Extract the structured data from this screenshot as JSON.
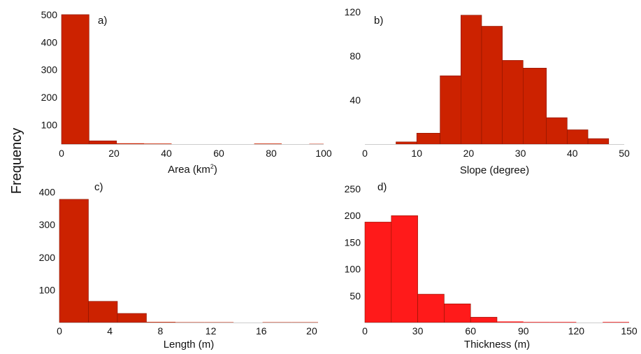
{
  "figure": {
    "ylabel": "Frequency"
  },
  "chart_data": [
    {
      "type": "bar",
      "panel_label": "a)",
      "xlabel": "Area (km",
      "xlabel_sup": "2",
      "xlabel_tail": ")",
      "ylabel": "Frequency",
      "xlim": [
        0,
        100
      ],
      "ylim": [
        30,
        510
      ],
      "xticks": [
        0,
        20,
        40,
        60,
        80,
        100
      ],
      "yticks": [
        100,
        200,
        300,
        400,
        500
      ],
      "bin_edges": [
        0,
        10.5,
        21,
        31.5,
        42,
        52.5,
        63,
        73.5,
        84,
        94.5,
        100
      ],
      "values": [
        500,
        42,
        33,
        32,
        30,
        30,
        30,
        32,
        30,
        31
      ],
      "color": "#cc2200"
    },
    {
      "type": "bar",
      "panel_label": "b)",
      "xlabel": "Slope (degree)",
      "ylabel": "Frequency",
      "xlim": [
        0,
        50
      ],
      "ylim": [
        0,
        120
      ],
      "xticks": [
        0,
        10,
        20,
        30,
        40,
        50
      ],
      "yticks": [
        40,
        80,
        120
      ],
      "bin_edges": [
        6,
        10,
        14.5,
        18.5,
        22.5,
        26.5,
        30.5,
        35,
        39,
        43,
        47
      ],
      "values": [
        2,
        10,
        62,
        117,
        107,
        76,
        69,
        24,
        13,
        5
      ],
      "color": "#cc2200"
    },
    {
      "type": "bar",
      "panel_label": "c)",
      "xlabel": "Length (m)",
      "ylabel": "Frequency",
      "xlim": [
        0,
        20.5
      ],
      "ylim": [
        0,
        410
      ],
      "xticks": [
        0,
        4,
        8,
        12,
        16,
        20
      ],
      "yticks": [
        100,
        200,
        300,
        400
      ],
      "bin_edges": [
        0,
        2.3,
        4.6,
        6.9,
        9.2,
        11.5,
        13.8,
        16.1,
        18.4,
        20.5
      ],
      "values": [
        378,
        65,
        28,
        2,
        1,
        1,
        0,
        1,
        1
      ],
      "color": "#cc2200"
    },
    {
      "type": "bar",
      "panel_label": "d)",
      "xlabel": "Thickness (m)",
      "ylabel": "Frequency",
      "xlim": [
        0,
        150
      ],
      "ylim": [
        0,
        250
      ],
      "xticks": [
        0,
        30,
        60,
        90,
        120,
        150
      ],
      "yticks": [
        50,
        100,
        150,
        200,
        250
      ],
      "bin_edges": [
        0,
        15,
        30,
        45,
        60,
        75,
        90,
        105,
        120,
        135,
        150
      ],
      "values": [
        188,
        200,
        53,
        35,
        10,
        2,
        1,
        1,
        0,
        1
      ],
      "color": "#ff1a1a"
    }
  ]
}
